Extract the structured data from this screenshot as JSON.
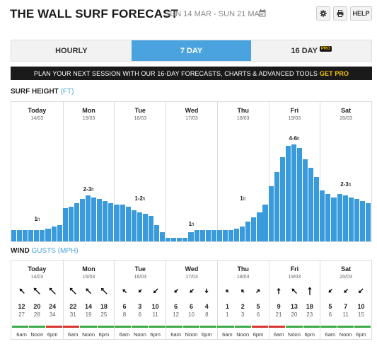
{
  "header": {
    "title": "THE WALL SURF FORECAST",
    "date_range": "SUN 14 MAR - SUN 21 MAR",
    "help_label": "HELP"
  },
  "tabs": [
    {
      "label": "HOURLY",
      "active": false
    },
    {
      "label": "7 DAY",
      "active": true
    },
    {
      "label": "16 DAY",
      "active": false,
      "badge": "PRO"
    }
  ],
  "promo": {
    "text": "PLAN YOUR NEXT SESSION WITH OUR 16-DAY FORECASTS, CHARTS & ADVANCED TOOLS",
    "cta": "GET PRO"
  },
  "surf": {
    "label": "SURF HEIGHT",
    "unit": "(FT)",
    "bar_color": "#3a9bdc",
    "scale_max_ft": 6.8,
    "days": [
      {
        "name": "Today",
        "date": "14/03",
        "label": "1",
        "values": [
          0.6,
          0.6,
          0.6,
          0.6,
          0.6,
          0.6,
          0.7,
          0.8,
          0.9
        ]
      },
      {
        "name": "Mon",
        "date": "15/03",
        "label": "2-3",
        "values": [
          1.8,
          1.9,
          2.1,
          2.3,
          2.5,
          2.4,
          2.3,
          2.2,
          2.1
        ]
      },
      {
        "name": "Tue",
        "date": "16/03",
        "label": "1-2",
        "values": [
          2.0,
          2.0,
          1.9,
          1.7,
          1.6,
          1.5,
          1.4,
          0.9,
          0.5
        ]
      },
      {
        "name": "Wed",
        "date": "17/03",
        "label": "1",
        "values": [
          0.2,
          0.2,
          0.2,
          0.2,
          0.5,
          0.6,
          0.6,
          0.6,
          0.6
        ]
      },
      {
        "name": "Thu",
        "date": "18/03",
        "label": "1",
        "values": [
          0.6,
          0.6,
          0.6,
          0.7,
          0.8,
          1.1,
          1.3,
          1.6,
          2.0
        ]
      },
      {
        "name": "Fri",
        "date": "19/03",
        "label": "4-6",
        "values": [
          3.0,
          3.8,
          4.6,
          5.2,
          5.3,
          5.1,
          4.5,
          4.0,
          3.5
        ]
      },
      {
        "name": "Sat",
        "date": "20/03",
        "label": "2-3",
        "values": [
          2.8,
          2.6,
          2.4,
          2.6,
          2.5,
          2.4,
          2.3,
          2.2,
          2.1
        ]
      }
    ]
  },
  "wind": {
    "label": "WIND",
    "gusts_label": "GUSTS",
    "unit": "(MPH)",
    "rating_colors": {
      "good": "#3cab49",
      "bad": "#d7352f"
    },
    "time_labels": [
      "6am",
      "Noon",
      "6pm"
    ],
    "days": [
      {
        "name": "Today",
        "date": "14/03",
        "slots": [
          {
            "dir": 135,
            "speed": "12",
            "gust": "27",
            "rating": "good"
          },
          {
            "dir": 135,
            "speed": "20",
            "gust": "28",
            "rating": "good"
          },
          {
            "dir": 135,
            "speed": "24",
            "gust": "34",
            "rating": "bad"
          }
        ]
      },
      {
        "name": "Mon",
        "date": "15/03",
        "slots": [
          {
            "dir": 135,
            "speed": "22",
            "gust": "31",
            "rating": "bad"
          },
          {
            "dir": 135,
            "speed": "14",
            "gust": "19",
            "rating": "good"
          },
          {
            "dir": 135,
            "speed": "18",
            "gust": "25",
            "rating": "good"
          }
        ]
      },
      {
        "name": "Tue",
        "date": "16/03",
        "slots": [
          {
            "dir": 135,
            "speed": "6",
            "gust": "8",
            "rating": "good"
          },
          {
            "dir": 45,
            "speed": "3",
            "gust": "6",
            "rating": "good"
          },
          {
            "dir": 45,
            "speed": "10",
            "gust": "11",
            "rating": "good"
          }
        ]
      },
      {
        "name": "Wed",
        "date": "17/03",
        "slots": [
          {
            "dir": 45,
            "speed": "6",
            "gust": "12",
            "rating": "good"
          },
          {
            "dir": 45,
            "speed": "6",
            "gust": "10",
            "rating": "good"
          },
          {
            "dir": 0,
            "speed": "4",
            "gust": "8",
            "rating": "good"
          }
        ]
      },
      {
        "name": "Thu",
        "date": "18/03",
        "slots": [
          {
            "dir": 135,
            "speed": "1",
            "gust": "1",
            "rating": "good"
          },
          {
            "dir": 135,
            "speed": "2",
            "gust": "3",
            "rating": "good"
          },
          {
            "dir": 225,
            "speed": "5",
            "gust": "6",
            "rating": "bad"
          }
        ]
      },
      {
        "name": "Fri",
        "date": "19/03",
        "slots": [
          {
            "dir": 180,
            "speed": "9",
            "gust": "21",
            "rating": "bad"
          },
          {
            "dir": 135,
            "speed": "13",
            "gust": "20",
            "rating": "good"
          },
          {
            "dir": 180,
            "speed": "18",
            "gust": "23",
            "rating": "good"
          }
        ]
      },
      {
        "name": "Sat",
        "date": "20/03",
        "slots": [
          {
            "dir": 45,
            "speed": "5",
            "gust": "6",
            "rating": "good"
          },
          {
            "dir": 45,
            "speed": "7",
            "gust": "11",
            "rating": "good"
          },
          {
            "dir": 45,
            "speed": "10",
            "gust": "15",
            "rating": "good"
          }
        ]
      }
    ]
  }
}
